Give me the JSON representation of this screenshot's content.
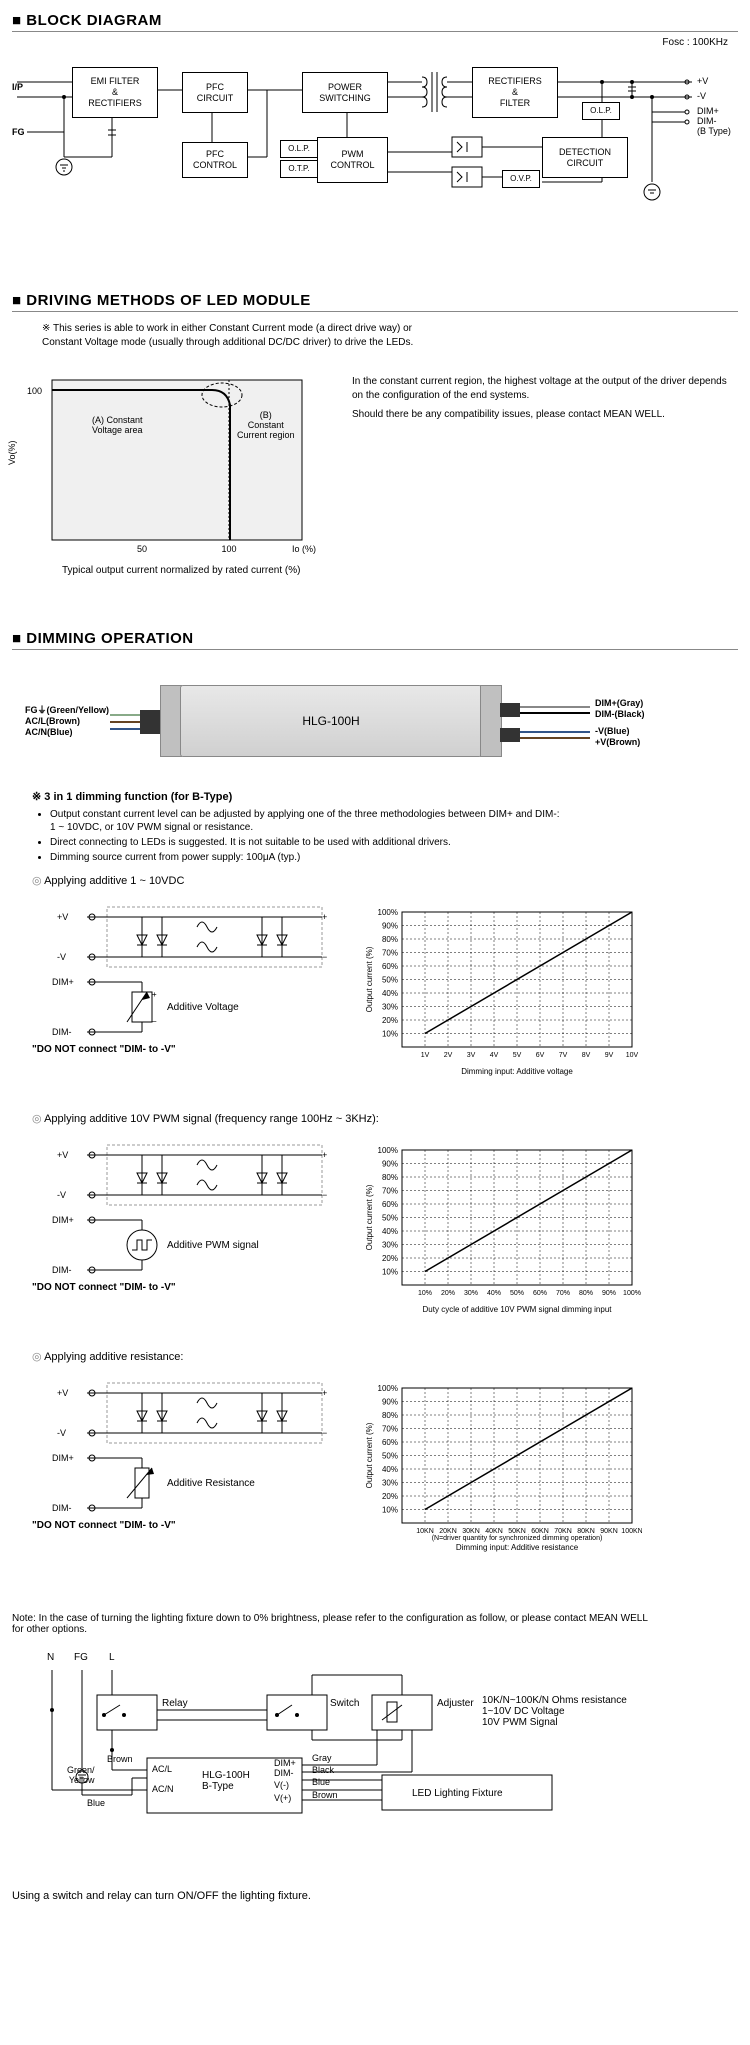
{
  "sections": {
    "block": "BLOCK DIAGRAM",
    "driving": "DRIVING METHODS OF LED MODULE",
    "dimming": "DIMMING OPERATION"
  },
  "fosc": "Fosc : 100KHz",
  "blocks": {
    "emi": "EMI FILTER\n&\nRECTIFIERS",
    "pfc": "PFC\nCIRCUIT",
    "pfcCtrl": "PFC\nCONTROL",
    "power": "POWER\nSWITCHING",
    "pwm": "PWM\nCONTROL",
    "rect": "RECTIFIERS\n&\nFILTER",
    "detect": "DETECTION\nCIRCUIT",
    "olp": "O.L.P.",
    "olp2": "O.L.P.",
    "otp": "O.T.P.",
    "ovp": "O.V.P.",
    "ip": "I/P",
    "fg": "FG",
    "outV": "+V",
    "outVn": "-V",
    "dimP": "DIM+",
    "dimN": "DIM-",
    "btype": "(B Type)"
  },
  "driving": {
    "intro": "※ This series is able to work in either Constant Current mode (a direct drive way) or\n    Constant Voltage mode (usually through additional DC/DC driver) to drive the LEDs.",
    "right1": "In the constant current region, the highest voltage at the output of the driver depends on the configuration of the end systems.",
    "right2": "Should there be any compatibility issues, please contact MEAN WELL.",
    "labelA": "(A)   Constant\n       Voltage area",
    "labelB": "(B)\nConstant\nCurrent region",
    "ylabel": "Vo(%)",
    "xlabel": "Io (%)",
    "caption": "Typical output current normalized by rated current (%)",
    "y100": "100",
    "x50": "50",
    "x100": "100"
  },
  "device": {
    "model": "HLG-100H",
    "leftLabels": "FG⏚(Green/Yellow)\nAC/L(Brown)\nAC/N(Blue)",
    "rightLabels1": "DIM+(Gray)\nDIM-(Black)",
    "rightLabels2": "-V(Blue)\n+V(Brown)"
  },
  "dimming": {
    "title": "※ 3 in 1 dimming function (for B-Type)",
    "bullets": [
      "Output constant current level can be adjusted by applying one of the three methodologies between DIM+ and DIM-:\n1 ~ 10VDC, or 10V PWM signal or resistance.",
      "Direct connecting to LEDs is suggested. It is not suitable to be used with additional drivers.",
      "Dimming source current from power supply: 100μA (typ.)"
    ],
    "method1": "Applying additive 1 ~ 10VDC",
    "method2": "Applying additive 10V PWM signal (frequency range 100Hz ~ 3KHz):",
    "method3": "Applying additive resistance:",
    "warning": "\"DO NOT connect \"DIM- to -V\"",
    "addVoltage": "Additive Voltage",
    "addPWM": "Additive PWM signal",
    "addRes": "Additive Resistance",
    "termV": "+V",
    "termVn": "-V",
    "termDp": "DIM+",
    "termDn": "DIM-"
  },
  "charts": {
    "ylabel": "Output current (%)",
    "xlabel1": "Dimming input: Additive voltage",
    "xlabel2": "Duty cycle of additive 10V PWM signal dimming input",
    "xlabel3": "Dimming input: Additive resistance",
    "note3": "(N=driver quantity for synchronized dimming operation)",
    "yticks": [
      "10%",
      "20%",
      "30%",
      "40%",
      "50%",
      "60%",
      "70%",
      "80%",
      "90%",
      "100%"
    ],
    "xticks1": [
      "1V",
      "2V",
      "3V",
      "4V",
      "5V",
      "6V",
      "7V",
      "8V",
      "9V",
      "10V"
    ],
    "xticks2": [
      "10%",
      "20%",
      "30%",
      "40%",
      "50%",
      "60%",
      "70%",
      "80%",
      "90%",
      "100%"
    ],
    "xticks3": [
      "10KN",
      "20KN",
      "30KN",
      "40KN",
      "50KN",
      "60KN",
      "70KN",
      "80KN",
      "90KN",
      "100KN"
    ]
  },
  "finalNote": "Note: In the case of turning the lighting fixture down to 0% brightness, please refer to the configuration as follow, or please contact MEAN WELL\n         for other options.",
  "finalDiagram": {
    "N": "N",
    "FG": "FG",
    "L": "L",
    "relay": "Relay",
    "switch": "Switch",
    "adjuster": "Adjuster",
    "spec": "10K/N~100K/N Ohms resistance\n1~10V DC Voltage\n10V PWM Signal",
    "gy": "Green/\nYellow",
    "brown": "Brown",
    "blue": "Blue",
    "acl": "AC/L",
    "acn": "AC/N",
    "model": "HLG-100H\nB-Type",
    "dimP": "DIM+",
    "dimN": "DIM-",
    "vN": "V(-)",
    "vP": "V(+)",
    "gray": "Gray",
    "black": "Black",
    "blue2": "Blue",
    "brown2": "Brown",
    "fixture": "LED Lighting Fixture",
    "bottom": "Using a switch and relay can turn ON/OFF the lighting fixture."
  }
}
